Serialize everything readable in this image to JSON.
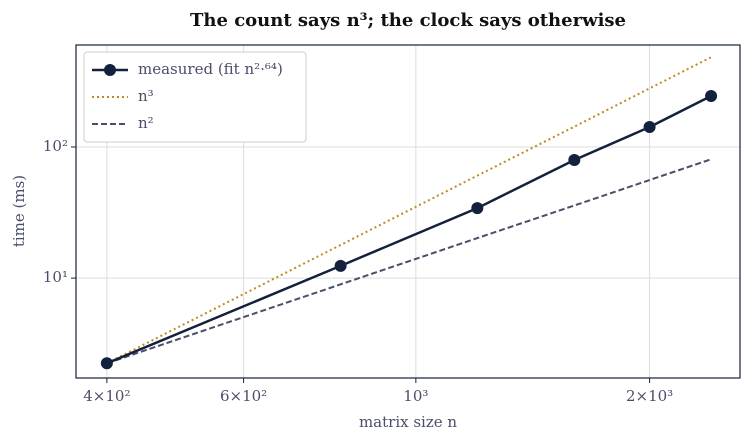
{
  "chart_data": {
    "type": "line",
    "title": "The count says n³; the clock says otherwise",
    "xlabel": "matrix size n",
    "ylabel": "time (ms)",
    "x": [
      400,
      800,
      1200,
      1600,
      2000,
      2400
    ],
    "series": [
      {
        "name": "measured (fit n²·⁶⁴)",
        "color": "#14213d",
        "style": "solid",
        "markers": true,
        "values": [
          2.24,
          12.4,
          34.2,
          79.6,
          142,
          245
        ]
      },
      {
        "name": "n³",
        "color": "#c08a1e",
        "style": "dotted",
        "markers": false,
        "values": [
          2.24,
          17.9,
          60.5,
          143,
          280,
          484
        ]
      },
      {
        "name": "n²",
        "color": "#4a4e69",
        "style": "dashed",
        "markers": false,
        "values": [
          2.24,
          8.96,
          20.2,
          35.8,
          56,
          80.6
        ]
      }
    ],
    "xscale": "log",
    "yscale": "log",
    "xlim": [
      365,
      2615
    ],
    "ylim": [
      1.73,
      600
    ],
    "xticks": [
      {
        "value": 400,
        "label": "4×10²"
      },
      {
        "value": 600,
        "label": "6×10²"
      },
      {
        "value": 1000,
        "label": "10³"
      },
      {
        "value": 2000,
        "label": "2×10³"
      }
    ],
    "yticks": [
      {
        "value": 10,
        "label": "10¹"
      },
      {
        "value": 100,
        "label": "10²"
      }
    ],
    "grid": true,
    "legend": "upper left"
  }
}
